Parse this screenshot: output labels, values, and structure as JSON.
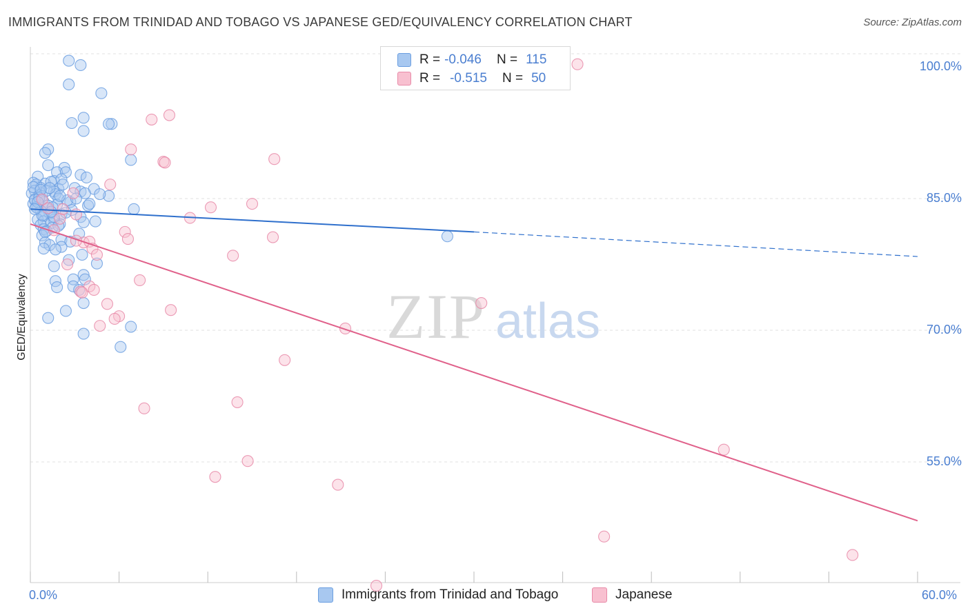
{
  "header": {
    "title": "IMMIGRANTS FROM TRINIDAD AND TOBAGO VS JAPANESE GED/EQUIVALENCY CORRELATION CHART",
    "source": "Source: ZipAtlas.com"
  },
  "legend": {
    "rows": [
      {
        "r_label": "R =",
        "r_value": "-0.046",
        "n_label": "N =",
        "n_value": "115",
        "color": "#a8c8f0",
        "border": "#6a9ee0"
      },
      {
        "r_label": "R =",
        "r_value": "-0.515",
        "n_label": "N =",
        "n_value": "50",
        "color": "#f8c0d0",
        "border": "#e88aa8"
      }
    ]
  },
  "watermark": {
    "zip": "ZIP",
    "atlas": "atlas"
  },
  "chart_data": {
    "type": "scatter",
    "title": "IMMIGRANTS FROM TRINIDAD AND TOBAGO VS JAPANESE GED/EQUIVALENCY CORRELATION CHART",
    "xlabel": "",
    "ylabel": "GED/Equivalency",
    "xlim": [
      0,
      60
    ],
    "ylim": [
      40,
      102
    ],
    "x_tick_labels": [
      "0.0%",
      "60.0%"
    ],
    "y_tick_labels": [
      {
        "value": 100,
        "label": "100.0%"
      },
      {
        "value": 85,
        "label": "85.0%"
      },
      {
        "value": 70,
        "label": "70.0%"
      },
      {
        "value": 55,
        "label": "55.0%"
      }
    ],
    "grid": true,
    "series": [
      {
        "name": "Immigrants from Trinidad and Tobago",
        "color": "#6a9ee0",
        "fill": "#a8c8f0",
        "trend": {
          "x": [
            0,
            30
          ],
          "y": [
            83.8,
            81.2
          ],
          "dashed_to": [
            60,
            78.4
          ],
          "color": "#2e6fcc"
        },
        "points": [
          [
            2.6,
            100.7
          ],
          [
            3.4,
            100.2
          ],
          [
            2.6,
            98.0
          ],
          [
            4.8,
            97.0
          ],
          [
            3.6,
            94.2
          ],
          [
            2.8,
            93.6
          ],
          [
            5.5,
            93.5
          ],
          [
            5.3,
            93.5
          ],
          [
            3.6,
            92.7
          ],
          [
            1.2,
            90.6
          ],
          [
            1.0,
            90.2
          ],
          [
            6.8,
            89.4
          ],
          [
            1.2,
            88.8
          ],
          [
            2.3,
            88.5
          ],
          [
            1.8,
            88.0
          ],
          [
            2.4,
            88.0
          ],
          [
            3.4,
            87.7
          ],
          [
            0.5,
            87.5
          ],
          [
            1.6,
            87.0
          ],
          [
            2.1,
            87.2
          ],
          [
            1.0,
            86.7
          ],
          [
            1.4,
            86.9
          ],
          [
            0.2,
            86.8
          ],
          [
            0.4,
            86.6
          ],
          [
            0.7,
            86.2
          ],
          [
            1.9,
            86.1
          ],
          [
            3.0,
            86.2
          ],
          [
            4.3,
            86.1
          ],
          [
            0.3,
            85.9
          ],
          [
            1.6,
            85.8
          ],
          [
            3.4,
            85.8
          ],
          [
            3.7,
            85.6
          ],
          [
            0.1,
            85.6
          ],
          [
            1.7,
            85.5
          ],
          [
            0.6,
            85.4
          ],
          [
            5.3,
            85.3
          ],
          [
            4.7,
            85.5
          ],
          [
            0.8,
            85.3
          ],
          [
            1.9,
            85.0
          ],
          [
            0.3,
            84.8
          ],
          [
            0.9,
            84.6
          ],
          [
            2.7,
            84.6
          ],
          [
            0.2,
            84.4
          ],
          [
            1.8,
            84.3
          ],
          [
            1.2,
            84.2
          ],
          [
            3.9,
            84.2
          ],
          [
            0.5,
            83.9
          ],
          [
            1.1,
            83.9
          ],
          [
            2.8,
            83.7
          ],
          [
            7.0,
            83.8
          ],
          [
            0.7,
            83.6
          ],
          [
            1.3,
            83.3
          ],
          [
            2.1,
            83.2
          ],
          [
            0.9,
            83.0
          ],
          [
            3.4,
            82.9
          ],
          [
            1.6,
            82.6
          ],
          [
            0.5,
            82.6
          ],
          [
            4.4,
            82.4
          ],
          [
            0.9,
            82.4
          ],
          [
            1.4,
            82.2
          ],
          [
            3.6,
            82.3
          ],
          [
            2.0,
            82.1
          ],
          [
            0.7,
            82.0
          ],
          [
            1.5,
            81.7
          ],
          [
            0.9,
            81.5
          ],
          [
            1.1,
            81.3
          ],
          [
            3.3,
            81.0
          ],
          [
            0.8,
            80.8
          ],
          [
            2.1,
            80.3
          ],
          [
            1.0,
            80.0
          ],
          [
            2.7,
            80.1
          ],
          [
            1.3,
            79.7
          ],
          [
            2.1,
            79.5
          ],
          [
            0.9,
            79.3
          ],
          [
            1.7,
            79.2
          ],
          [
            3.5,
            78.6
          ],
          [
            2.6,
            78.0
          ],
          [
            4.5,
            77.6
          ],
          [
            1.6,
            77.3
          ],
          [
            3.6,
            76.3
          ],
          [
            2.9,
            75.8
          ],
          [
            3.7,
            75.8
          ],
          [
            1.7,
            75.6
          ],
          [
            2.9,
            75.0
          ],
          [
            1.8,
            74.9
          ],
          [
            3.3,
            74.6
          ],
          [
            3.6,
            73.1
          ],
          [
            2.4,
            72.2
          ],
          [
            1.2,
            71.4
          ],
          [
            6.8,
            70.4
          ],
          [
            3.6,
            69.6
          ],
          [
            6.1,
            68.1
          ],
          [
            28.2,
            80.7
          ],
          [
            0.3,
            84.9
          ],
          [
            1.5,
            84.0
          ],
          [
            2.4,
            83.4
          ],
          [
            0.6,
            85.1
          ],
          [
            1.1,
            85.9
          ],
          [
            4.0,
            84.4
          ],
          [
            0.4,
            84.0
          ],
          [
            1.3,
            86.2
          ],
          [
            2.5,
            84.8
          ],
          [
            0.8,
            83.1
          ],
          [
            1.9,
            81.9
          ],
          [
            0.2,
            86.3
          ],
          [
            3.1,
            85.0
          ],
          [
            1.6,
            82.9
          ],
          [
            0.5,
            84.6
          ],
          [
            2.2,
            86.6
          ],
          [
            1.0,
            81.2
          ],
          [
            0.7,
            86.0
          ],
          [
            1.4,
            83.5
          ],
          [
            2.0,
            85.3
          ],
          [
            0.3,
            83.8
          ],
          [
            3.8,
            87.4
          ]
        ]
      },
      {
        "name": "Japanese",
        "color": "#e88aa8",
        "fill": "#f8c0d0",
        "trend": {
          "x": [
            0,
            60
          ],
          "y": [
            82.1,
            48.3
          ],
          "color": "#e0608a"
        },
        "points": [
          [
            37.0,
            100.3
          ],
          [
            9.4,
            94.5
          ],
          [
            8.2,
            94.0
          ],
          [
            6.8,
            90.6
          ],
          [
            16.5,
            89.5
          ],
          [
            9.0,
            89.2
          ],
          [
            9.1,
            89.1
          ],
          [
            5.4,
            86.6
          ],
          [
            15.0,
            84.4
          ],
          [
            12.2,
            84.0
          ],
          [
            3.1,
            83.2
          ],
          [
            10.8,
            82.8
          ],
          [
            6.4,
            81.2
          ],
          [
            6.6,
            80.4
          ],
          [
            16.4,
            80.6
          ],
          [
            3.6,
            80.0
          ],
          [
            3.1,
            80.2
          ],
          [
            4.0,
            80.1
          ],
          [
            4.2,
            79.3
          ],
          [
            13.7,
            78.5
          ],
          [
            4.5,
            78.6
          ],
          [
            2.5,
            77.5
          ],
          [
            7.4,
            75.7
          ],
          [
            4.0,
            75.0
          ],
          [
            3.4,
            74.4
          ],
          [
            4.3,
            74.6
          ],
          [
            3.5,
            74.3
          ],
          [
            5.2,
            73.0
          ],
          [
            9.5,
            72.3
          ],
          [
            30.5,
            73.1
          ],
          [
            6.0,
            71.6
          ],
          [
            5.7,
            71.3
          ],
          [
            4.7,
            70.5
          ],
          [
            21.3,
            70.2
          ],
          [
            17.2,
            66.6
          ],
          [
            7.7,
            61.1
          ],
          [
            14.0,
            61.8
          ],
          [
            46.9,
            56.4
          ],
          [
            14.7,
            55.1
          ],
          [
            12.5,
            53.3
          ],
          [
            20.8,
            52.4
          ],
          [
            38.8,
            46.5
          ],
          [
            55.6,
            44.4
          ],
          [
            23.4,
            40.9
          ],
          [
            1.2,
            83.9
          ],
          [
            2.0,
            82.7
          ],
          [
            0.8,
            84.9
          ],
          [
            2.9,
            85.6
          ],
          [
            1.6,
            81.4
          ],
          [
            2.2,
            83.8
          ]
        ]
      }
    ]
  },
  "bottom_legend": [
    {
      "label": "Immigrants from Trinidad and Tobago"
    },
    {
      "label": "Japanese"
    }
  ]
}
